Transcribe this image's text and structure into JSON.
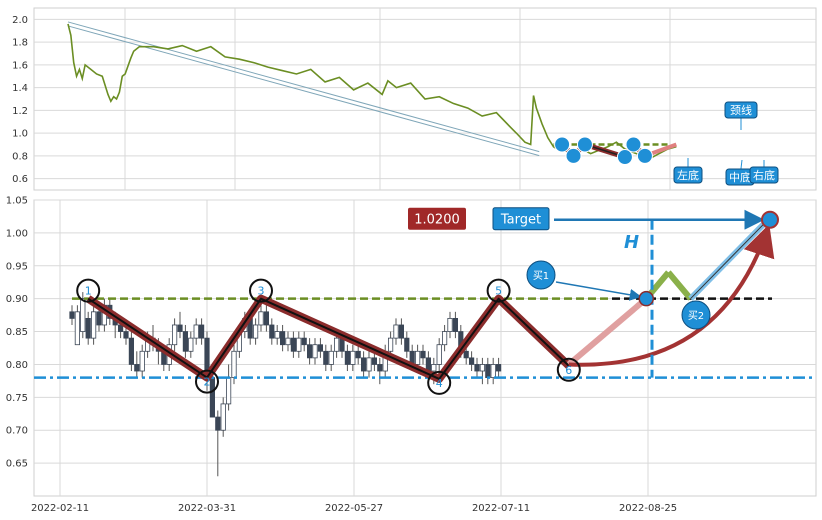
{
  "chart_data": [
    {
      "type": "line",
      "panel": "overview",
      "ylim": [
        0.5,
        2.1
      ],
      "yticks": [
        "0.6",
        "0.8",
        "1.0",
        "1.2",
        "1.4",
        "1.6",
        "1.8",
        "2.0"
      ],
      "grid": true,
      "line_color": "#6b8e23",
      "points": [
        [
          0,
          1.96
        ],
        [
          1,
          1.86
        ],
        [
          2,
          1.62
        ],
        [
          3,
          1.5
        ],
        [
          4,
          1.56
        ],
        [
          5,
          1.48
        ],
        [
          6,
          1.6
        ],
        [
          8,
          1.56
        ],
        [
          10,
          1.52
        ],
        [
          12,
          1.5
        ],
        [
          14,
          1.34
        ],
        [
          15,
          1.28
        ],
        [
          16,
          1.32
        ],
        [
          17,
          1.3
        ],
        [
          18,
          1.36
        ],
        [
          19,
          1.5
        ],
        [
          20,
          1.52
        ],
        [
          22,
          1.66
        ],
        [
          23,
          1.72
        ],
        [
          25,
          1.76
        ],
        [
          30,
          1.76
        ],
        [
          35,
          1.74
        ],
        [
          40,
          1.77
        ],
        [
          45,
          1.72
        ],
        [
          50,
          1.76
        ],
        [
          55,
          1.67
        ],
        [
          60,
          1.65
        ],
        [
          65,
          1.62
        ],
        [
          70,
          1.58
        ],
        [
          75,
          1.55
        ],
        [
          80,
          1.52
        ],
        [
          85,
          1.56
        ],
        [
          90,
          1.45
        ],
        [
          95,
          1.49
        ],
        [
          100,
          1.38
        ],
        [
          105,
          1.44
        ],
        [
          110,
          1.34
        ],
        [
          112,
          1.46
        ],
        [
          115,
          1.4
        ],
        [
          120,
          1.44
        ],
        [
          125,
          1.3
        ],
        [
          130,
          1.32
        ],
        [
          135,
          1.26
        ],
        [
          140,
          1.22
        ],
        [
          145,
          1.15
        ],
        [
          150,
          1.18
        ],
        [
          155,
          1.05
        ],
        [
          157,
          1.0
        ],
        [
          160,
          0.92
        ],
        [
          162,
          0.9
        ],
        [
          163,
          1.33
        ],
        [
          164,
          1.22
        ],
        [
          165,
          1.15
        ],
        [
          166,
          1.08
        ],
        [
          168,
          0.96
        ],
        [
          170,
          0.88
        ],
        [
          172,
          0.85
        ],
        [
          175,
          0.84
        ],
        [
          180,
          0.86
        ],
        [
          183,
          0.82
        ],
        [
          186,
          0.85
        ],
        [
          189,
          0.88
        ],
        [
          192,
          0.92
        ],
        [
          195,
          0.86
        ],
        [
          198,
          0.83
        ],
        [
          201,
          0.8
        ],
        [
          204,
          0.78
        ],
        [
          207,
          0.82
        ],
        [
          210,
          0.86
        ],
        [
          213,
          0.88
        ]
      ],
      "trendline": {
        "from": [
          0,
          1.96
        ],
        "to": [
          165,
          0.82
        ]
      },
      "markers": [
        {
          "x": 173,
          "y": 0.9
        },
        {
          "x": 177,
          "y": 0.8
        },
        {
          "x": 181,
          "y": 0.9
        },
        {
          "x": 195,
          "y": 0.79
        },
        {
          "x": 198,
          "y": 0.9
        },
        {
          "x": 202,
          "y": 0.8
        }
      ],
      "neckline": 0.9,
      "callouts": [
        "左底",
        "中底",
        "右底",
        "颈线"
      ]
    },
    {
      "type": "candlestick",
      "panel": "pattern",
      "ylim": [
        0.6,
        1.05
      ],
      "yticks": [
        "0.65",
        "0.70",
        "0.75",
        "0.80",
        "0.85",
        "0.90",
        "0.95",
        "1.00",
        "1.05"
      ],
      "xticks": [
        "2022-02-11",
        "2022-03-31",
        "2022-05-27",
        "2022-07-11",
        "2022-08-25"
      ],
      "grid": true,
      "candles": [
        [
          0.88,
          0.87,
          0.89,
          0.86
        ],
        [
          0.83,
          0.88,
          0.89,
          0.83
        ],
        [
          0.85,
          0.9,
          0.91,
          0.84
        ],
        [
          0.87,
          0.84,
          0.88,
          0.83
        ],
        [
          0.84,
          0.88,
          0.89,
          0.83
        ],
        [
          0.88,
          0.86,
          0.89,
          0.85
        ],
        [
          0.86,
          0.89,
          0.9,
          0.85
        ],
        [
          0.89,
          0.87,
          0.9,
          0.86
        ],
        [
          0.87,
          0.86,
          0.88,
          0.84
        ],
        [
          0.86,
          0.85,
          0.87,
          0.84
        ],
        [
          0.85,
          0.84,
          0.86,
          0.83
        ],
        [
          0.84,
          0.8,
          0.85,
          0.79
        ],
        [
          0.8,
          0.79,
          0.82,
          0.78
        ],
        [
          0.79,
          0.82,
          0.83,
          0.78
        ],
        [
          0.82,
          0.84,
          0.85,
          0.81
        ],
        [
          0.84,
          0.83,
          0.86,
          0.82
        ],
        [
          0.83,
          0.82,
          0.84,
          0.8
        ],
        [
          0.82,
          0.8,
          0.83,
          0.79
        ],
        [
          0.8,
          0.83,
          0.84,
          0.79
        ],
        [
          0.83,
          0.86,
          0.87,
          0.82
        ],
        [
          0.86,
          0.85,
          0.88,
          0.84
        ],
        [
          0.85,
          0.82,
          0.86,
          0.81
        ],
        [
          0.82,
          0.84,
          0.85,
          0.81
        ],
        [
          0.84,
          0.86,
          0.87,
          0.83
        ],
        [
          0.86,
          0.84,
          0.87,
          0.83
        ],
        [
          0.84,
          0.78,
          0.85,
          0.76
        ],
        [
          0.78,
          0.72,
          0.79,
          0.72
        ],
        [
          0.72,
          0.7,
          0.73,
          0.63
        ],
        [
          0.7,
          0.74,
          0.75,
          0.69
        ],
        [
          0.74,
          0.78,
          0.8,
          0.73
        ],
        [
          0.78,
          0.82,
          0.83,
          0.77
        ],
        [
          0.82,
          0.85,
          0.86,
          0.81
        ],
        [
          0.85,
          0.87,
          0.88,
          0.84
        ],
        [
          0.87,
          0.84,
          0.88,
          0.83
        ],
        [
          0.84,
          0.86,
          0.87,
          0.83
        ],
        [
          0.86,
          0.88,
          0.89,
          0.85
        ],
        [
          0.88,
          0.86,
          0.89,
          0.85
        ],
        [
          0.86,
          0.84,
          0.87,
          0.83
        ],
        [
          0.84,
          0.85,
          0.86,
          0.83
        ],
        [
          0.85,
          0.83,
          0.86,
          0.82
        ],
        [
          0.83,
          0.84,
          0.85,
          0.82
        ],
        [
          0.84,
          0.82,
          0.85,
          0.81
        ],
        [
          0.82,
          0.84,
          0.85,
          0.81
        ],
        [
          0.84,
          0.83,
          0.85,
          0.82
        ],
        [
          0.83,
          0.81,
          0.84,
          0.8
        ],
        [
          0.81,
          0.83,
          0.84,
          0.8
        ],
        [
          0.83,
          0.82,
          0.84,
          0.81
        ],
        [
          0.82,
          0.8,
          0.83,
          0.79
        ],
        [
          0.8,
          0.82,
          0.83,
          0.79
        ],
        [
          0.82,
          0.84,
          0.85,
          0.81
        ],
        [
          0.84,
          0.82,
          0.85,
          0.81
        ],
        [
          0.82,
          0.8,
          0.83,
          0.79
        ],
        [
          0.8,
          0.82,
          0.83,
          0.79
        ],
        [
          0.82,
          0.81,
          0.83,
          0.8
        ],
        [
          0.81,
          0.79,
          0.82,
          0.78
        ],
        [
          0.79,
          0.81,
          0.82,
          0.78
        ],
        [
          0.81,
          0.8,
          0.82,
          0.79
        ],
        [
          0.8,
          0.79,
          0.81,
          0.77
        ],
        [
          0.79,
          0.82,
          0.83,
          0.78
        ],
        [
          0.82,
          0.84,
          0.85,
          0.81
        ],
        [
          0.84,
          0.86,
          0.87,
          0.83
        ],
        [
          0.86,
          0.84,
          0.87,
          0.83
        ],
        [
          0.84,
          0.82,
          0.85,
          0.81
        ],
        [
          0.82,
          0.8,
          0.83,
          0.79
        ],
        [
          0.8,
          0.82,
          0.83,
          0.79
        ],
        [
          0.82,
          0.81,
          0.83,
          0.8
        ],
        [
          0.81,
          0.79,
          0.82,
          0.78
        ],
        [
          0.79,
          0.8,
          0.81,
          0.77
        ],
        [
          0.8,
          0.83,
          0.84,
          0.79
        ],
        [
          0.83,
          0.85,
          0.86,
          0.82
        ],
        [
          0.85,
          0.87,
          0.88,
          0.84
        ],
        [
          0.87,
          0.85,
          0.88,
          0.84
        ],
        [
          0.85,
          0.82,
          0.86,
          0.81
        ],
        [
          0.82,
          0.81,
          0.83,
          0.8
        ],
        [
          0.81,
          0.8,
          0.82,
          0.79
        ],
        [
          0.8,
          0.79,
          0.81,
          0.78
        ],
        [
          0.79,
          0.8,
          0.81,
          0.77
        ],
        [
          0.8,
          0.78,
          0.81,
          0.77
        ],
        [
          0.78,
          0.8,
          0.81,
          0.77
        ],
        [
          0.8,
          0.79,
          0.81,
          0.78
        ]
      ],
      "pivots": [
        {
          "label": "1",
          "x": 3,
          "y": 0.9
        },
        {
          "label": "2",
          "x": 25,
          "y": 0.78
        },
        {
          "label": "3",
          "x": 35,
          "y": 0.9
        },
        {
          "label": "4",
          "x": 68,
          "y": 0.778
        },
        {
          "label": "5",
          "x": 79,
          "y": 0.9
        },
        {
          "label": "6",
          "x": 92,
          "y": 0.798
        }
      ],
      "neckline": 0.9,
      "support": 0.78,
      "target": 1.02,
      "projection": [
        [
          92,
          0.8
        ],
        [
          106,
          0.9
        ],
        [
          110,
          0.94
        ],
        [
          114,
          0.9
        ],
        [
          128,
          1.02
        ]
      ],
      "price_label": "1.0200",
      "target_label": "Target",
      "h_label": "H",
      "buy1_label": "买1",
      "buy2_label": "买2"
    }
  ]
}
